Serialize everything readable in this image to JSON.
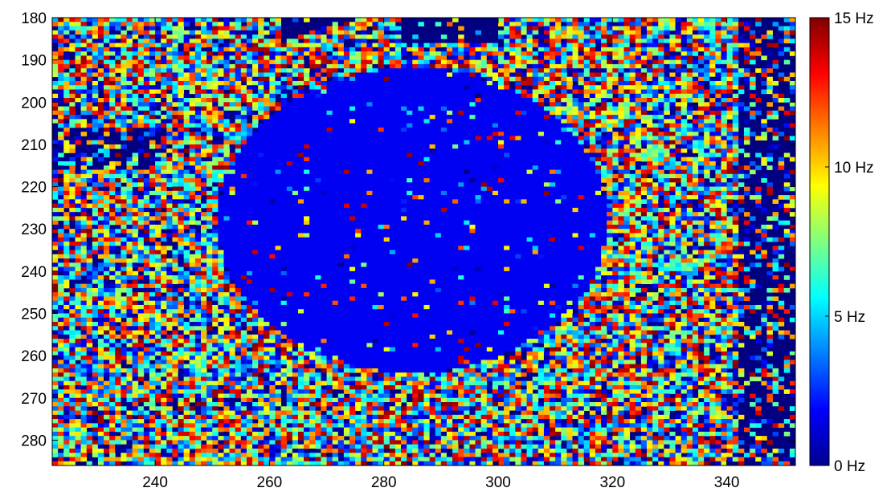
{
  "chart_data": {
    "type": "heatmap",
    "title": "",
    "xlabel": "",
    "ylabel": "",
    "x_range": [
      222,
      352
    ],
    "y_range": [
      180,
      286
    ],
    "y_direction": "top-to-bottom",
    "x_ticks": [
      "240",
      "260",
      "280",
      "300",
      "320",
      "340"
    ],
    "x_tick_values": [
      240,
      260,
      280,
      300,
      320,
      340
    ],
    "y_ticks": [
      "180",
      "190",
      "200",
      "210",
      "220",
      "230",
      "240",
      "250",
      "260",
      "270",
      "280"
    ],
    "y_tick_values": [
      180,
      190,
      200,
      210,
      220,
      230,
      240,
      250,
      260,
      270,
      280
    ],
    "colorbar": {
      "colormap": "jet",
      "range": [
        0,
        15
      ],
      "tick_values": [
        0,
        5,
        10,
        15
      ],
      "tick_labels": [
        "0  Hz",
        "5  Hz",
        "10 Hz",
        "15 Hz"
      ],
      "placement": "right"
    },
    "regions": [
      {
        "shape": "ellipse",
        "center_x": 285,
        "center_y": 228,
        "radius_x": 34,
        "radius_y": 36,
        "value_hz": 1.7,
        "kind": "uniform"
      },
      {
        "shape": "band",
        "kind": "random-noise",
        "value_range_hz": [
          0,
          15
        ]
      },
      {
        "shape": "background",
        "kind": "uniform",
        "value_hz": 0
      }
    ],
    "grid": false
  },
  "colors": {
    "background_zero": "#00008f",
    "inner_disk": "#0062ff"
  }
}
